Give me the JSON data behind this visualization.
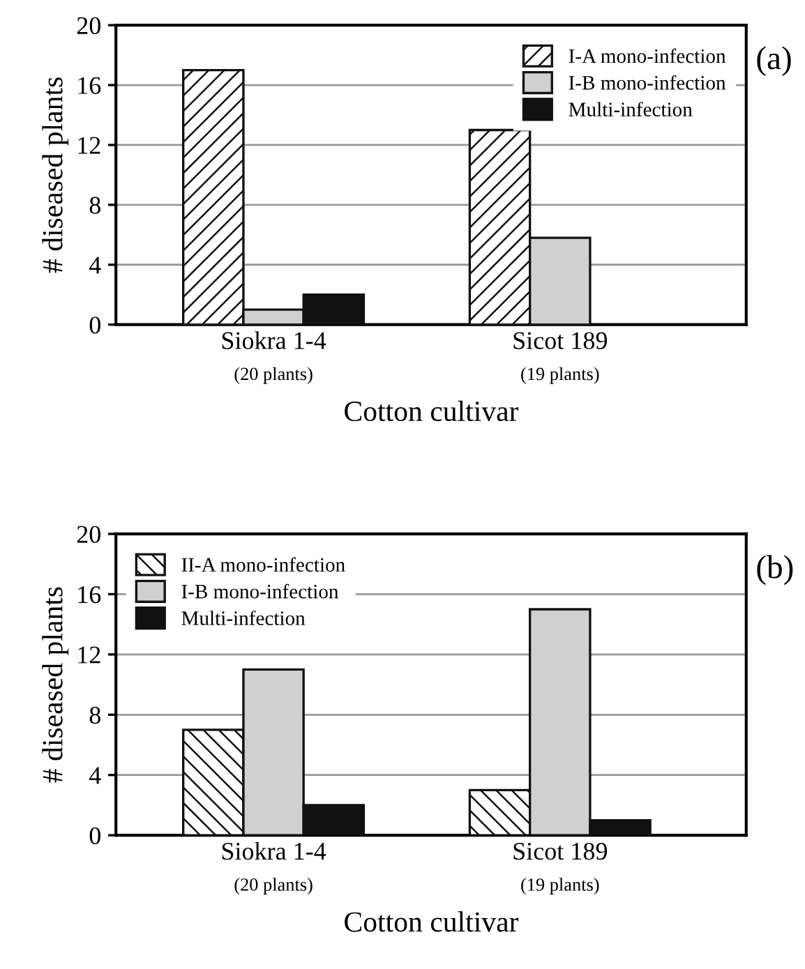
{
  "chart_data": [
    {
      "type": "bar",
      "categories": [
        "Siokra 1-4\n(20 plants)",
        "Sicot 189\n(19 plants)"
      ],
      "xlabel": "Cotton cultivar",
      "ylabel": "# diseased plants",
      "ylim": [
        0,
        20
      ],
      "yticks": [
        0,
        4,
        8,
        12,
        16,
        20
      ],
      "grid": "y",
      "legend": "top right",
      "annotations": [
        "(a)"
      ],
      "series": [
        {
          "name": "I-A mono-infection",
          "color": "#ffffff",
          "values": [
            17,
            13
          ]
        },
        {
          "name": "I-B mono-infection",
          "color": "#d0d0d0",
          "values": [
            1,
            5.8
          ]
        },
        {
          "name": "Multi-infection",
          "color": "#111111",
          "values": [
            2,
            null
          ]
        }
      ]
    },
    {
      "type": "bar",
      "categories": [
        "Siokra 1-4\n(20 plants)",
        "Sicot 189\n(19 plants)"
      ],
      "xlabel": "Cotton cultivar",
      "ylabel": "# diseased plants",
      "ylim": [
        0,
        20
      ],
      "yticks": [
        0,
        4,
        8,
        12,
        16,
        20
      ],
      "grid": "y",
      "legend": "top left",
      "annotations": [
        "(b)"
      ],
      "series": [
        {
          "name": "II-A mono-infection",
          "color": "#ffffff",
          "values": [
            7,
            3
          ]
        },
        {
          "name": "I-B mono-infection",
          "color": "#d0d0d0",
          "values": [
            11,
            15
          ]
        },
        {
          "name": "Multi-infection",
          "color": "#111111",
          "values": [
            2,
            1
          ]
        }
      ]
    }
  ]
}
